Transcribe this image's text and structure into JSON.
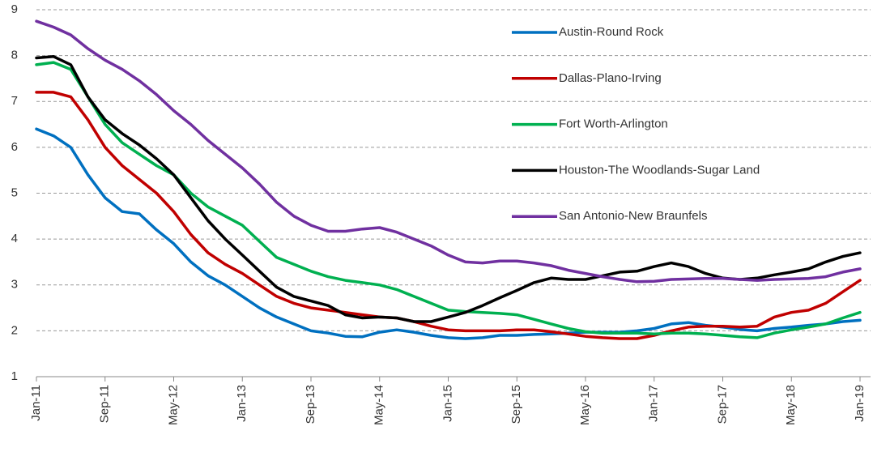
{
  "chart_data": {
    "type": "line",
    "categories": [
      "Jan-11",
      null,
      null,
      null,
      "Sep-11",
      null,
      null,
      null,
      "May-12",
      null,
      null,
      null,
      "Jan-13",
      null,
      null,
      null,
      "Sep-13",
      null,
      null,
      null,
      "May-14",
      null,
      null,
      null,
      "Jan-15",
      null,
      null,
      null,
      "Sep-15",
      null,
      null,
      null,
      "May-16",
      null,
      null,
      null,
      "Jan-17",
      null,
      null,
      null,
      "Sep-17",
      null,
      null,
      null,
      "May-18",
      null,
      null,
      null,
      "Jan-19"
    ],
    "series": [
      {
        "name": "Austin-Round Rock",
        "color": "#0070c0",
        "values": [
          6.4,
          6.25,
          6.0,
          5.4,
          4.9,
          4.6,
          4.55,
          4.2,
          3.9,
          3.5,
          3.2,
          3.0,
          2.75,
          2.5,
          2.3,
          2.15,
          2.0,
          1.95,
          1.88,
          1.87,
          1.97,
          2.02,
          1.97,
          1.9,
          1.85,
          1.83,
          1.85,
          1.9,
          1.9,
          1.92,
          1.93,
          1.95,
          1.97,
          1.97,
          1.97,
          2.0,
          2.05,
          2.15,
          2.18,
          2.12,
          2.08,
          2.03,
          2.0,
          2.05,
          2.08,
          2.12,
          2.15,
          2.2,
          2.23
        ]
      },
      {
        "name": "Dallas-Plano-Irving",
        "color": "#c00000",
        "values": [
          7.2,
          7.2,
          7.1,
          6.6,
          6.0,
          5.6,
          5.3,
          5.0,
          4.6,
          4.1,
          3.7,
          3.45,
          3.25,
          3.0,
          2.75,
          2.6,
          2.5,
          2.45,
          2.4,
          2.35,
          2.3,
          2.28,
          2.2,
          2.1,
          2.02,
          2.0,
          2.0,
          2.0,
          2.02,
          2.02,
          1.98,
          1.93,
          1.88,
          1.85,
          1.83,
          1.83,
          1.9,
          2.0,
          2.08,
          2.1,
          2.1,
          2.08,
          2.1,
          2.3,
          2.4,
          2.45,
          2.6,
          2.85,
          3.1
        ]
      },
      {
        "name": "Fort Worth-Arlington",
        "color": "#00b050",
        "values": [
          7.8,
          7.85,
          7.7,
          7.1,
          6.5,
          6.1,
          5.85,
          5.6,
          5.4,
          5.0,
          4.7,
          4.5,
          4.3,
          3.95,
          3.6,
          3.45,
          3.3,
          3.18,
          3.1,
          3.05,
          3.0,
          2.9,
          2.75,
          2.6,
          2.45,
          2.42,
          2.4,
          2.38,
          2.35,
          2.25,
          2.15,
          2.05,
          1.98,
          1.95,
          1.95,
          1.95,
          1.93,
          1.95,
          1.95,
          1.93,
          1.9,
          1.87,
          1.85,
          1.95,
          2.02,
          2.08,
          2.15,
          2.28,
          2.4
        ]
      },
      {
        "name": "Houston-The Woodlands-Sugar Land",
        "color": "#000000",
        "values": [
          7.95,
          7.98,
          7.8,
          7.1,
          6.6,
          6.3,
          6.05,
          5.75,
          5.4,
          4.9,
          4.4,
          4.0,
          3.65,
          3.3,
          2.95,
          2.75,
          2.65,
          2.55,
          2.35,
          2.28,
          2.3,
          2.28,
          2.2,
          2.2,
          2.3,
          2.4,
          2.55,
          2.72,
          2.88,
          3.05,
          3.15,
          3.12,
          3.12,
          3.2,
          3.28,
          3.3,
          3.4,
          3.48,
          3.4,
          3.25,
          3.15,
          3.12,
          3.15,
          3.22,
          3.28,
          3.35,
          3.5,
          3.62,
          3.7
        ]
      },
      {
        "name": "San Antonio-New Braunfels",
        "color": "#7030a0",
        "values": [
          8.75,
          8.62,
          8.45,
          8.15,
          7.9,
          7.7,
          7.45,
          7.15,
          6.8,
          6.5,
          6.15,
          5.85,
          5.55,
          5.2,
          4.8,
          4.5,
          4.3,
          4.17,
          4.17,
          4.22,
          4.25,
          4.15,
          4.0,
          3.85,
          3.65,
          3.5,
          3.48,
          3.52,
          3.52,
          3.48,
          3.42,
          3.32,
          3.25,
          3.18,
          3.12,
          3.07,
          3.08,
          3.12,
          3.13,
          3.14,
          3.14,
          3.12,
          3.1,
          3.12,
          3.13,
          3.14,
          3.18,
          3.28,
          3.35
        ]
      }
    ],
    "ylim": [
      1,
      9
    ],
    "yticks": [
      1,
      2,
      3,
      4,
      5,
      6,
      7,
      8,
      9
    ],
    "grid": true,
    "legend": "upper right"
  }
}
